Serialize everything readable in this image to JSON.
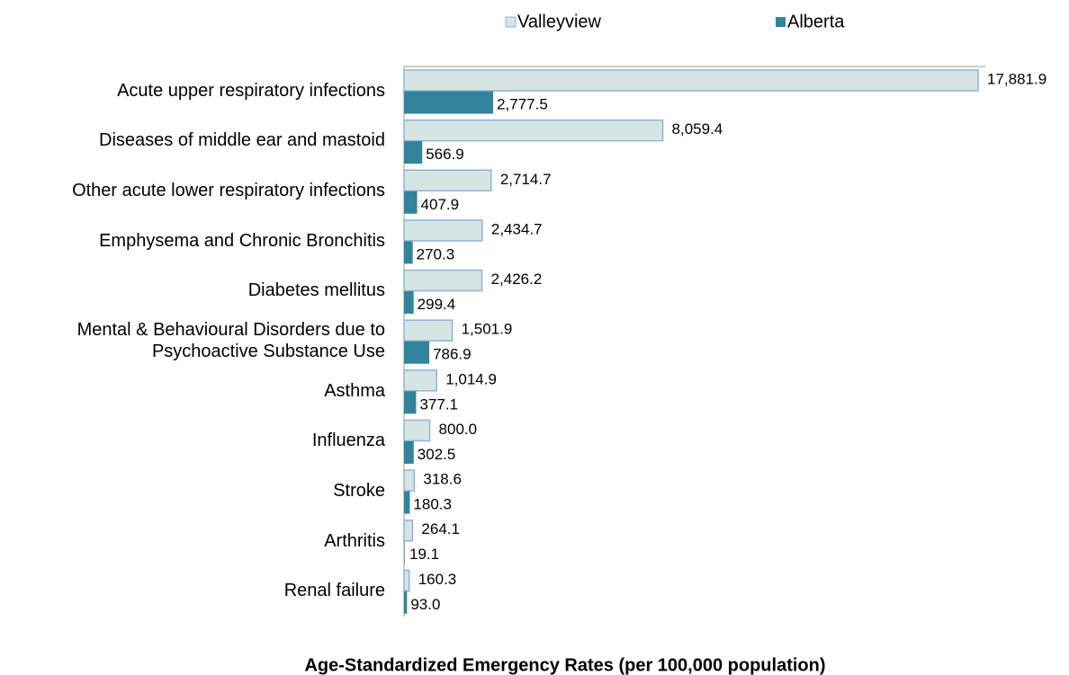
{
  "chart_data": {
    "type": "bar",
    "orientation": "horizontal",
    "title": "Age-Standardized Emergency Rates (per 100,000 population)",
    "categories": [
      "Acute upper respiratory infections",
      "Diseases of middle ear and mastoid",
      "Other acute lower respiratory infections",
      "Emphysema and Chronic Bronchitis",
      "Diabetes mellitus",
      "Mental & Behavioural Disorders due to\nPsychoactive Substance Use",
      "Asthma",
      "Influenza",
      "Stroke",
      "Arthritis",
      "Renal failure"
    ],
    "series": [
      {
        "name": "Valleyview",
        "color": "#d7e5e2",
        "stroke": "#8db3e2",
        "values": [
          17881.9,
          8059.4,
          2714.7,
          2434.7,
          2426.2,
          1501.9,
          1014.9,
          800.0,
          318.6,
          264.1,
          160.3
        ],
        "value_labels": [
          "17,881.9",
          "8,059.4",
          "2,714.7",
          "2,434.7",
          "2,426.2",
          "1,501.9",
          "1,014.9",
          "800.0",
          "318.6",
          "264.1",
          "160.3"
        ]
      },
      {
        "name": "Alberta",
        "color": "#31849b",
        "values": [
          2777.5,
          566.9,
          407.9,
          270.3,
          299.4,
          786.9,
          377.1,
          302.5,
          180.3,
          19.1,
          93.0
        ],
        "value_labels": [
          "2,777.5",
          "566.9",
          "407.9",
          "270.3",
          "299.4",
          "786.9",
          "377.1",
          "302.5",
          "180.3",
          "19.1",
          "93.0"
        ]
      }
    ],
    "legend": "top"
  }
}
